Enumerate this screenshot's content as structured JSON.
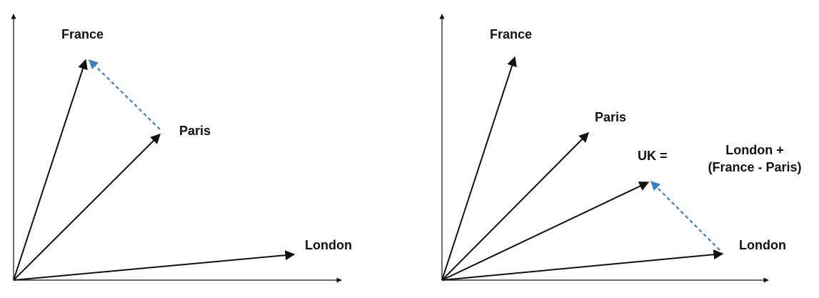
{
  "colors": {
    "vector": "#111111",
    "offset_vector": "#3b7fc4",
    "axis": "#111111"
  },
  "left_panel": {
    "labels": {
      "france": "France",
      "paris": "Paris",
      "london": "London"
    }
  },
  "right_panel": {
    "labels": {
      "france": "France",
      "paris": "Paris",
      "london": "London",
      "uk_prefix": "UK =",
      "uk_formula_line1": "London +",
      "uk_formula_line2": "(France - Paris)"
    }
  }
}
